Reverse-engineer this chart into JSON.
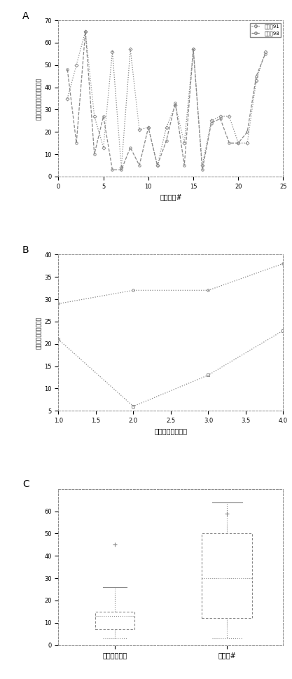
{
  "panel_A": {
    "xlabel": "経由地点#",
    "ylabel": "ターゲット地点からの距離紏",
    "xlim": [
      0,
      25
    ],
    "ylim": [
      0,
      70
    ],
    "yticks": [
      0,
      10,
      20,
      30,
      40,
      50,
      60,
      70
    ],
    "xticks": [
      0,
      5,
      10,
      15,
      20,
      25
    ],
    "series1_label": "データ91",
    "series2_label": "データ98",
    "series1_x": [
      1,
      2,
      3,
      4,
      5,
      6,
      7,
      8,
      9,
      10,
      11,
      12,
      13,
      14,
      15,
      16,
      17,
      18,
      19,
      20,
      21,
      22,
      23
    ],
    "series1_y": [
      35,
      50,
      65,
      27,
      13,
      56,
      4,
      57,
      21,
      22,
      5,
      22,
      32,
      15,
      57,
      5,
      25,
      27,
      27,
      15,
      15,
      43,
      56
    ],
    "series2_x": [
      1,
      2,
      3,
      4,
      5,
      6,
      7,
      8,
      9,
      10,
      11,
      12,
      13,
      14,
      15,
      16,
      17,
      18,
      19,
      20,
      21,
      22,
      23
    ],
    "series2_y": [
      48,
      15,
      65,
      10,
      27,
      3,
      3,
      13,
      5,
      22,
      5,
      16,
      33,
      5,
      57,
      3,
      24,
      26,
      15,
      15,
      20,
      45,
      55
    ]
  },
  "panel_B": {
    "xlabel": "形状のセグメント",
    "ylabel": "ターゲットからの距離",
    "xlim": [
      1,
      4
    ],
    "ylim": [
      5,
      40
    ],
    "yticks": [
      5,
      10,
      15,
      20,
      25,
      30,
      35,
      40
    ],
    "xticks": [
      1,
      1.5,
      2,
      2.5,
      3,
      3.5,
      4
    ],
    "line1_x": [
      1,
      2,
      3,
      4
    ],
    "line1_y": [
      29,
      32,
      32,
      38
    ],
    "line2_x": [
      1,
      2,
      3,
      4
    ],
    "line2_y": [
      21,
      6,
      13,
      23
    ]
  },
  "panel_C": {
    "xlim": [
      0,
      2
    ],
    "ylim": [
      0,
      70
    ],
    "yticks": [
      0,
      10,
      20,
      30,
      40,
      50,
      60
    ],
    "xticks": [
      0.5,
      1.5
    ],
    "xticklabels": [
      "ベースライン",
      "対象者#"
    ],
    "box1": {
      "med": 13,
      "q1": 7,
      "q3": 15,
      "whislo": 3,
      "whishi": 26,
      "fliers": [
        45
      ]
    },
    "box2": {
      "med": 30,
      "q1": 12,
      "q3": 50,
      "whislo": 3,
      "whishi": 64,
      "fliers": [
        59
      ]
    }
  },
  "bg_color": "#ffffff"
}
